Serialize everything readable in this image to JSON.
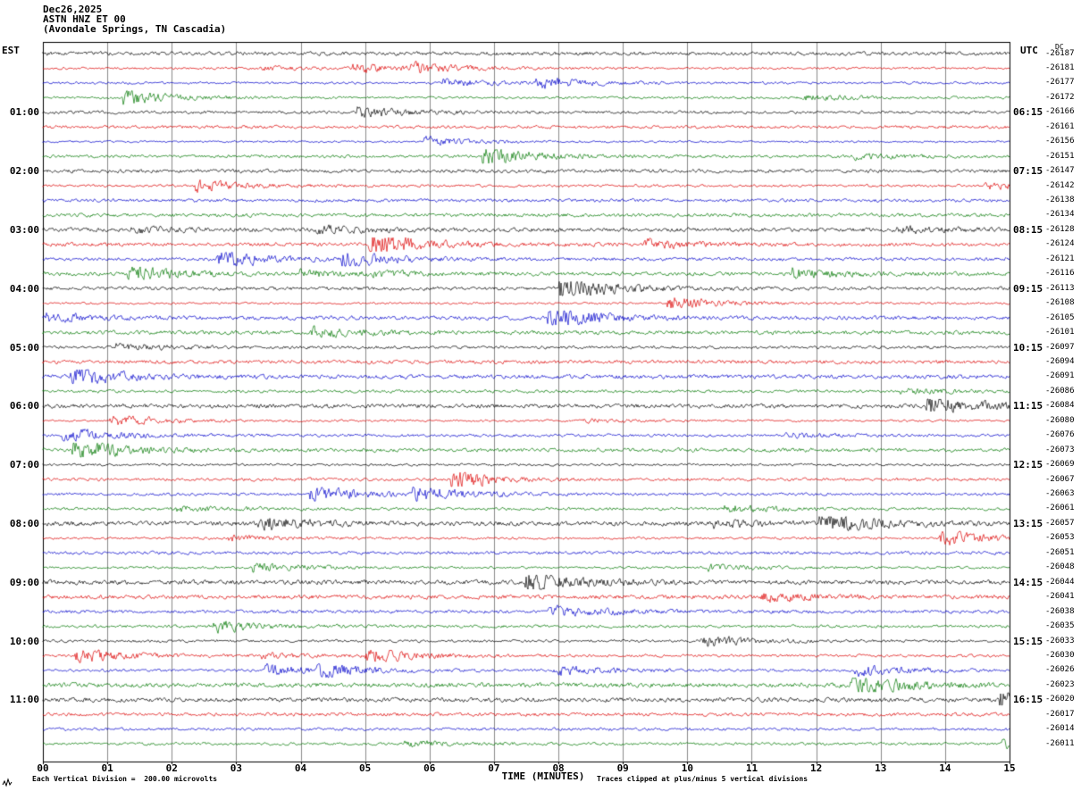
{
  "title": {
    "date": "Dec26,2025",
    "station": "ASTN HNZ ET 00",
    "location": "(Avondale Springs, TN Cascadia)"
  },
  "left_axis": {
    "header": "EST"
  },
  "right_axis": {
    "header": "UTC",
    "dc_label": "DC"
  },
  "x_axis": {
    "label": "TIME (MINUTES)"
  },
  "footer": {
    "left": "Each Vertical Division =  200.00 microvolts",
    "right": "Traces clipped at plus/minus 5 vertical divisions"
  },
  "chart_data": {
    "type": "line",
    "subtype": "helicorder seismogram (webicorder)",
    "station": "ASTN HNZ ET 00",
    "location": "Avondale Springs, TN Cascadia",
    "date": "Dec26,2025",
    "xlabel": "TIME (MINUTES)",
    "x_range": [
      0,
      15
    ],
    "x_ticks": [
      "00",
      "01",
      "02",
      "03",
      "04",
      "05",
      "06",
      "07",
      "08",
      "09",
      "10",
      "11",
      "12",
      "13",
      "14",
      "15"
    ],
    "minutes_per_line": 15,
    "num_traces": 48,
    "trace_color_cycle": [
      "#000000",
      "#dd0000",
      "#0000cc",
      "#007700"
    ],
    "left_hour_labels_est": [
      "01:00",
      "02:00",
      "03:00",
      "04:00",
      "05:00",
      "06:00",
      "07:00",
      "08:00",
      "09:00",
      "10:00",
      "11:00"
    ],
    "right_hour_labels_utc": [
      "06:15",
      "07:15",
      "08:15",
      "09:15",
      "10:15",
      "11:15",
      "12:15",
      "13:15",
      "14:15",
      "15:15",
      "16:15"
    ],
    "trace_dc_offsets": [
      "-26187",
      "-26181",
      "-26177",
      "-26172",
      "-26166",
      "-26161",
      "-26156",
      "-26151",
      "-26147",
      "-26142",
      "-26138",
      "-26134",
      "-26128",
      "-26124",
      "-26121",
      "-26116",
      "-26113",
      "-26108",
      "-26105",
      "-26101",
      "-26097",
      "-26094",
      "-26091",
      "-26086",
      "-26084",
      "-26080",
      "-26076",
      "-26073",
      "-26069",
      "-26067",
      "-26063",
      "-26061",
      "-26057",
      "-26053",
      "-26051",
      "-26048",
      "-26044",
      "-26041",
      "-26038",
      "-26035",
      "-26033",
      "-26030",
      "-26026",
      "-26023",
      "-26020",
      "-26017",
      "-26014",
      "-26011"
    ],
    "vertical_division_microvolts": 200.0,
    "clip_limit_divisions": 5,
    "content": "continuous ambient seismic background noise with small intermittent bursts on each 15-minute trace line"
  }
}
